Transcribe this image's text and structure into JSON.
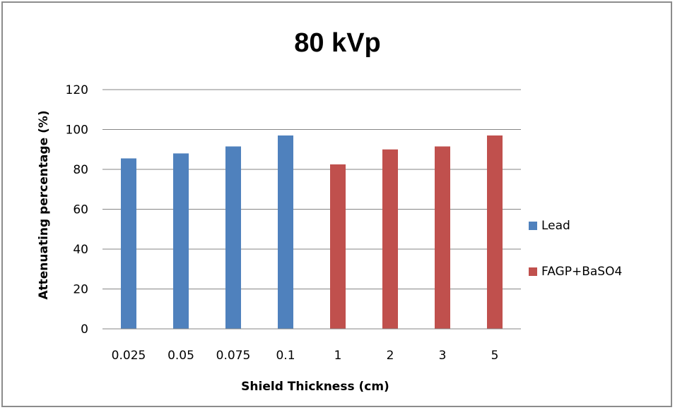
{
  "chart_data": {
    "type": "bar",
    "title": "80 kVp",
    "xlabel": "Shield Thickness (cm)",
    "ylabel": "Attenuating percentage (%)",
    "ylim": [
      0,
      120
    ],
    "yticks": [
      0,
      20,
      40,
      60,
      80,
      100,
      120
    ],
    "categories": [
      "0.025",
      "0.05",
      "0.075",
      "0.1",
      "1",
      "2",
      "3",
      "5"
    ],
    "series": [
      {
        "name": "Lead",
        "color": "#4f81bd",
        "values": [
          85.5,
          88,
          91.5,
          97,
          null,
          null,
          null,
          null
        ]
      },
      {
        "name": "FAGP+BaSO4",
        "color": "#c0504d",
        "values": [
          null,
          null,
          null,
          null,
          82.5,
          90,
          91.5,
          97
        ]
      }
    ],
    "grid": true,
    "legend_position": "right"
  }
}
